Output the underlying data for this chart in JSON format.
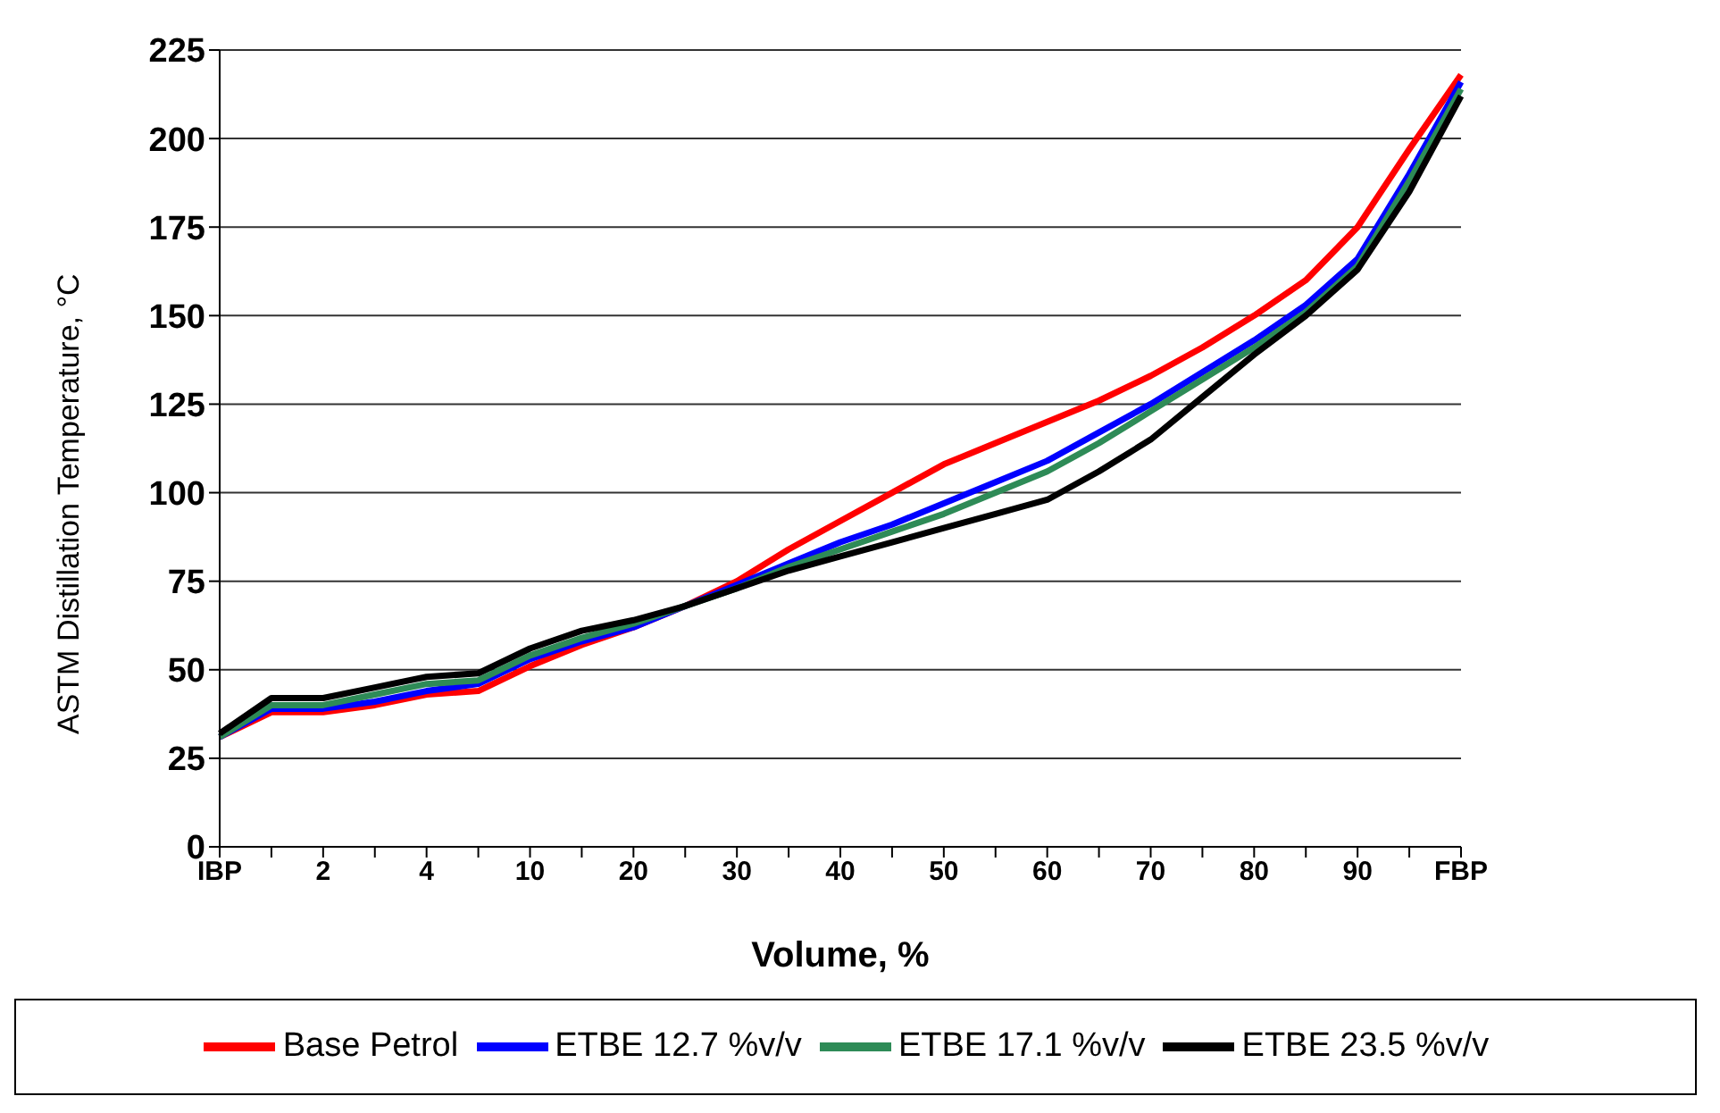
{
  "chart_data": {
    "type": "line",
    "xlabel": "Volume, %",
    "ylabel": "ASTM  Distillation Temperature, °C",
    "categories": [
      "IBP",
      null,
      "2",
      null,
      "4",
      null,
      "10",
      null,
      "20",
      null,
      "30",
      null,
      "40",
      null,
      "50",
      null,
      "60",
      null,
      "70",
      null,
      "80",
      null,
      "90",
      null,
      "FBP"
    ],
    "series": [
      {
        "name": "Base Petrol",
        "color": "#ff0000",
        "values": [
          31,
          38,
          38,
          40,
          43,
          44,
          51,
          57,
          62,
          68,
          75,
          84,
          92,
          100,
          108,
          114,
          120,
          126,
          133,
          141,
          150,
          160,
          175,
          197,
          218
        ]
      },
      {
        "name": "ETBE 12.7 %v/v",
        "color": "#0000ff",
        "values": [
          31,
          39,
          39,
          41,
          44,
          46,
          53,
          58,
          62,
          68,
          74,
          80,
          86,
          91,
          97,
          103,
          109,
          117,
          125,
          134,
          143,
          153,
          166,
          190,
          216
        ]
      },
      {
        "name": "ETBE 17.1 %v/v",
        "color": "#2e8b57",
        "values": [
          31,
          40,
          40,
          43,
          46,
          47,
          54,
          59,
          63,
          68,
          73,
          79,
          84,
          89,
          94,
          100,
          106,
          114,
          123,
          132,
          141,
          151,
          164,
          188,
          214
        ]
      },
      {
        "name": "ETBE 23.5 %v/v",
        "color": "#000000",
        "values": [
          32,
          42,
          42,
          45,
          48,
          49,
          56,
          61,
          64,
          68,
          73,
          78,
          82,
          86,
          90,
          94,
          98,
          106,
          115,
          127,
          139,
          150,
          163,
          185,
          212
        ]
      }
    ],
    "ylim": [
      0,
      225
    ],
    "yticks": [
      0,
      25,
      50,
      75,
      100,
      125,
      150,
      175,
      200,
      225
    ],
    "grid": "y",
    "legend": "bottom",
    "marker": "none"
  }
}
